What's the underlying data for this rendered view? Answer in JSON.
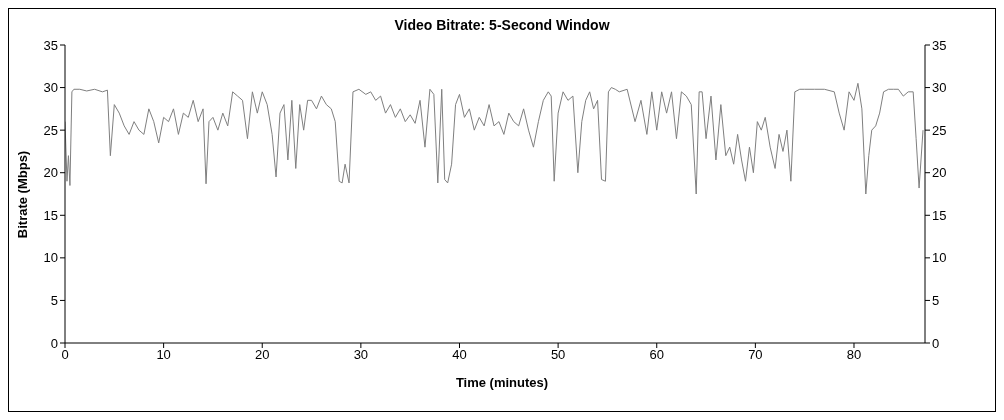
{
  "chart_data": {
    "type": "line",
    "title": "Video Bitrate: 5-Second Window",
    "xlabel": "Time (minutes)",
    "ylabel": "Bitrate (Mbps)",
    "x": [
      0,
      0.2,
      0.35,
      0.5,
      0.7,
      0.9,
      1.5,
      2.2,
      3,
      3.8,
      4.3,
      4.6,
      5,
      5.5,
      6,
      6.5,
      7,
      7.5,
      8,
      8.5,
      9,
      9.5,
      10,
      10.5,
      11,
      11.5,
      12,
      12.5,
      13,
      13.5,
      14,
      14.3,
      14.6,
      15,
      15.5,
      16,
      16.5,
      17,
      17.5,
      18,
      18.5,
      19,
      19.5,
      20,
      20.5,
      21,
      21.4,
      21.8,
      22.2,
      22.6,
      23,
      23.4,
      23.8,
      24.2,
      24.6,
      25,
      25.5,
      26,
      26.5,
      27,
      27.4,
      27.8,
      28.1,
      28.4,
      28.8,
      29.2,
      29.8,
      30.5,
      31,
      31.5,
      32,
      32.5,
      33,
      33.5,
      34,
      34.5,
      35,
      35.5,
      36,
      36.5,
      37,
      37.4,
      37.8,
      38.2,
      38.5,
      38.8,
      39.2,
      39.6,
      40,
      40.5,
      41,
      41.5,
      42,
      42.5,
      43,
      43.5,
      44,
      44.5,
      45,
      45.5,
      46,
      46.5,
      47,
      47.5,
      48,
      48.5,
      49,
      49.3,
      49.6,
      50,
      50.5,
      51,
      51.5,
      52,
      52.4,
      52.8,
      53.2,
      53.6,
      54,
      54.4,
      54.8,
      55.1,
      55.4,
      55.8,
      56.2,
      57,
      57.8,
      58.4,
      59,
      59.5,
      60,
      60.5,
      61,
      61.5,
      62,
      62.5,
      63,
      63.5,
      64,
      64.3,
      64.6,
      65,
      65.5,
      66,
      66.5,
      67,
      67.4,
      67.8,
      68.2,
      68.6,
      69,
      69.4,
      69.8,
      70.2,
      70.6,
      71,
      71.5,
      72,
      72.4,
      72.8,
      73.2,
      73.6,
      74,
      74.5,
      75,
      76,
      77,
      78,
      78.5,
      79,
      79.5,
      80,
      80.4,
      80.8,
      81.2,
      81.5,
      81.8,
      82.2,
      82.6,
      83,
      83.5,
      84,
      84.5,
      85,
      85.5,
      86,
      86.3,
      86.6,
      87
    ],
    "series": [
      {
        "color": "#7f7f7f",
        "values": [
          26,
          19,
          22,
          18.5,
          29.5,
          29.8,
          29.8,
          29.6,
          29.8,
          29.5,
          29.7,
          22,
          28,
          27,
          25.5,
          24.5,
          26,
          25,
          24.5,
          27.5,
          26,
          23.5,
          26.5,
          26,
          27.5,
          24.5,
          27,
          26.5,
          28.5,
          26,
          27.5,
          18.7,
          26,
          26.5,
          25,
          27,
          25.5,
          29.5,
          29,
          28.5,
          24,
          29.5,
          27,
          29.5,
          28,
          24.5,
          19.5,
          27,
          28,
          21.5,
          28.5,
          20.5,
          28,
          25,
          28.5,
          28.5,
          27.5,
          29,
          28,
          27.5,
          26,
          19,
          18.8,
          21,
          18.8,
          29.5,
          29.8,
          29.2,
          29.5,
          28.5,
          29,
          27,
          28,
          26.5,
          27.5,
          26,
          26.8,
          25.8,
          28.5,
          23,
          29.8,
          29.2,
          18.8,
          29.8,
          19.2,
          18.8,
          21,
          28,
          29.2,
          26.5,
          27.5,
          25,
          26.5,
          25.5,
          28,
          25.5,
          26,
          24.5,
          27,
          26,
          25.5,
          27.5,
          25,
          23,
          26,
          28.5,
          29.5,
          29,
          19,
          27,
          29.5,
          28.5,
          29,
          20,
          26,
          28.5,
          29.5,
          27.5,
          28.5,
          19.2,
          19,
          29.5,
          30,
          29.8,
          29.5,
          29.8,
          26,
          28.5,
          24.5,
          29.5,
          25,
          29.5,
          27,
          29.5,
          24,
          29.5,
          29,
          28,
          17.5,
          29.5,
          29.5,
          24,
          29,
          21.5,
          28,
          22,
          23,
          21,
          24.5,
          21.5,
          19,
          23,
          20,
          26,
          25,
          26.5,
          23,
          20.5,
          24.5,
          22.5,
          25,
          19,
          29.5,
          29.8,
          29.8,
          29.8,
          29.8,
          29.5,
          27,
          25,
          29.5,
          28.5,
          30.5,
          27.5,
          17.5,
          22,
          25,
          25.5,
          27,
          29.5,
          29.8,
          29.8,
          29.8,
          29,
          29.5,
          29.5,
          24,
          18.2,
          25
        ]
      }
    ],
    "xlim": [
      0,
      87.2
    ],
    "xticks": [
      0,
      10,
      20,
      30,
      40,
      50,
      60,
      70,
      80
    ],
    "ylim": [
      0,
      35
    ],
    "yticks": [
      0,
      5,
      10,
      15,
      20,
      25,
      30,
      35
    ],
    "y2lim": [
      0,
      35
    ],
    "y2ticks": [
      0,
      5,
      10,
      15,
      20,
      25,
      30,
      35
    ],
    "marker": "none",
    "line_style": "solid"
  }
}
